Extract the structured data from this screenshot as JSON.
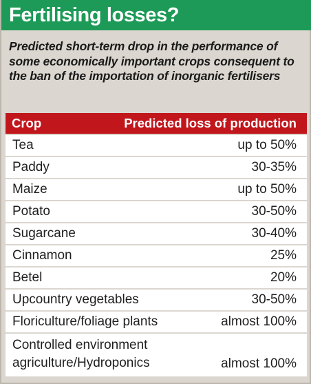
{
  "title": "Fertilising losses?",
  "subtitle": "Predicted short-term drop in the performance of some economically important crops consequent to the ban of the importation of inorganic fertilisers",
  "table": {
    "headers": {
      "crop": "Crop",
      "loss": "Predicted loss of production"
    },
    "rows": [
      {
        "crop": "Tea",
        "loss": "up to 50%"
      },
      {
        "crop": "Paddy",
        "loss": "30-35%"
      },
      {
        "crop": "Maize",
        "loss": "up to 50%"
      },
      {
        "crop": "Potato",
        "loss": "30-50%"
      },
      {
        "crop": "Sugarcane",
        "loss": "30-40%"
      },
      {
        "crop": "Cinnamon",
        "loss": "25%"
      },
      {
        "crop": "Betel",
        "loss": "20%"
      },
      {
        "crop": "Upcountry vegetables",
        "loss": "30-50%"
      },
      {
        "crop": "Floriculture/foliage plants",
        "loss": "almost 100%"
      },
      {
        "crop": "Controlled environment agriculture/Hydroponics",
        "loss": "almost 100%"
      }
    ]
  },
  "colors": {
    "title_bar": "#1d9a57",
    "header_bar": "#c1161c",
    "panel_background": "#dbd6cf",
    "row_background": "#ffffff"
  }
}
